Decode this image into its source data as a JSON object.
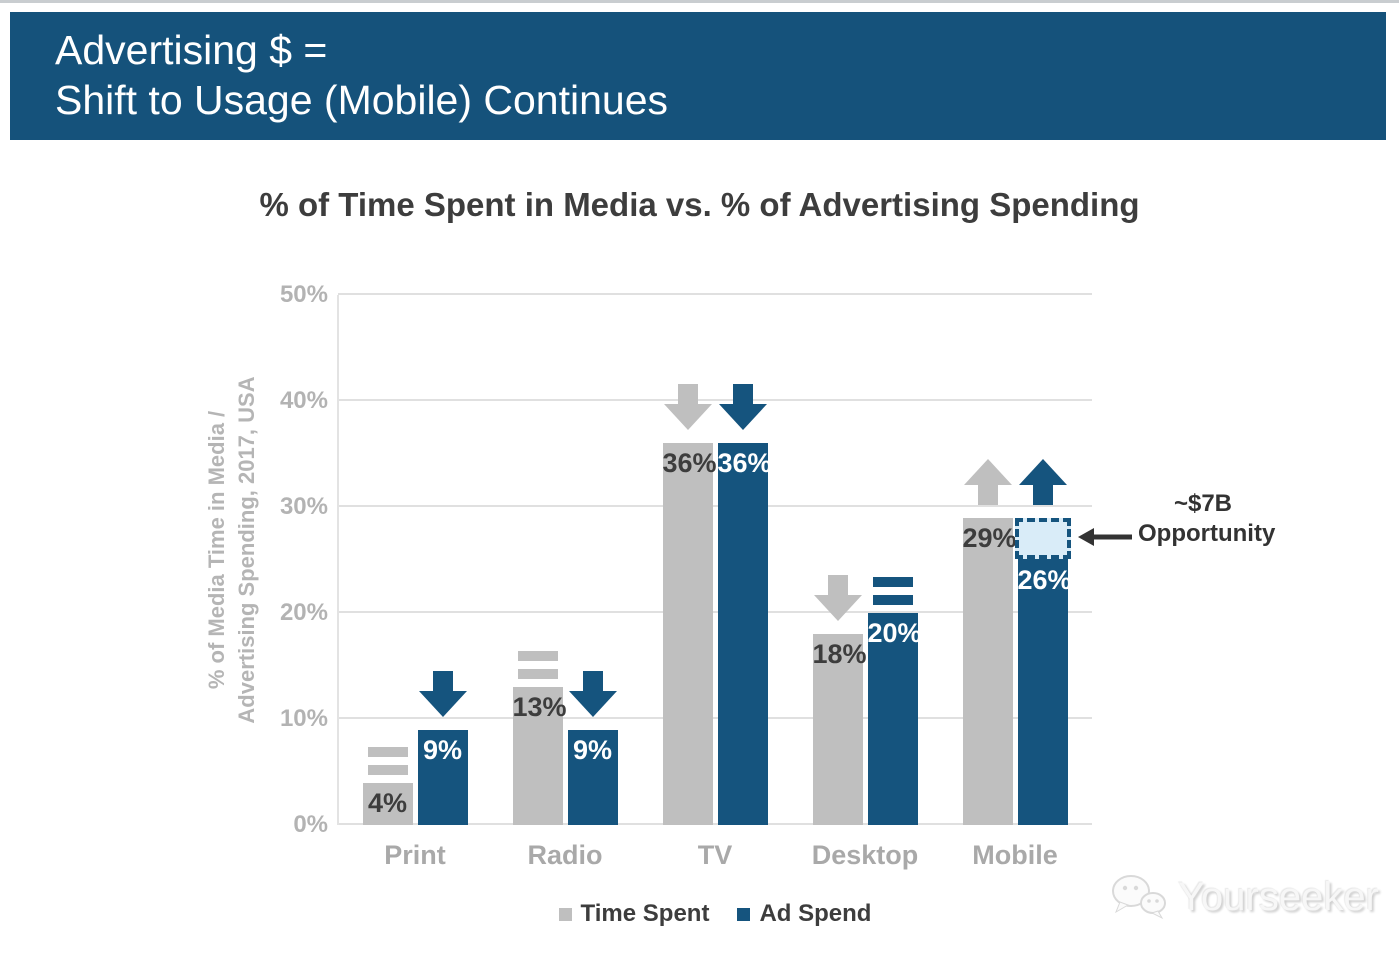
{
  "header": {
    "line1": "Advertising $ =",
    "line2": "Shift to Usage (Mobile) Continues"
  },
  "chart_data": {
    "type": "bar",
    "title": "% of Time Spent in Media vs. % of Advertising Spending",
    "ylabel": [
      "% of Media Time in Media /",
      "Advertising Spending, 2017, USA"
    ],
    "categories": [
      "Print",
      "Radio",
      "TV",
      "Desktop",
      "Mobile"
    ],
    "series": [
      {
        "name": "Time Spent",
        "color": "#bfbfbf",
        "label_color": "#3d3d3d",
        "values": [
          4,
          13,
          36,
          18,
          29
        ],
        "labels": [
          "4%",
          "13%",
          "36%",
          "18%",
          "29%"
        ],
        "trend_markers": [
          "equal",
          "equal",
          "down",
          "down",
          "up"
        ]
      },
      {
        "name": "Ad Spend",
        "color": "#15547e",
        "label_color": "#ffffff",
        "values": [
          9,
          9,
          36,
          20,
          26
        ],
        "labels": [
          "9%",
          "9%",
          "36%",
          "20%",
          "26%"
        ],
        "trend_markers": [
          "down",
          "down",
          "down",
          "equal",
          "up"
        ]
      }
    ],
    "ylim": [
      0,
      50
    ],
    "yticks": [
      "0%",
      "10%",
      "20%",
      "30%",
      "40%",
      "50%"
    ],
    "grid": true,
    "legend_position": "bottom",
    "annotation": {
      "text_line1": "~$7B",
      "text_line2": "Opportunity",
      "category": "Mobile",
      "series": "Ad Spend",
      "from": 26,
      "to": 29,
      "box_fill": "#d9ecf8",
      "box_border": "#15547e"
    }
  },
  "legend": [
    {
      "label": "Time Spent",
      "color": "#bfbfbf"
    },
    {
      "label": "Ad Spend",
      "color": "#15547e"
    }
  ],
  "watermark": {
    "text": "Yourseeker"
  },
  "colors": {
    "banner_bg": "#15527b",
    "banner_text": "#ffffff",
    "bar_gray": "#bfbfbf",
    "bar_blue": "#15547e",
    "title_text": "#3d3d3d",
    "axis_text": "#b3b3b3",
    "category_text": "#a9a9a9",
    "gridline": "#e0e0e0",
    "annotation_text": "#333333"
  }
}
